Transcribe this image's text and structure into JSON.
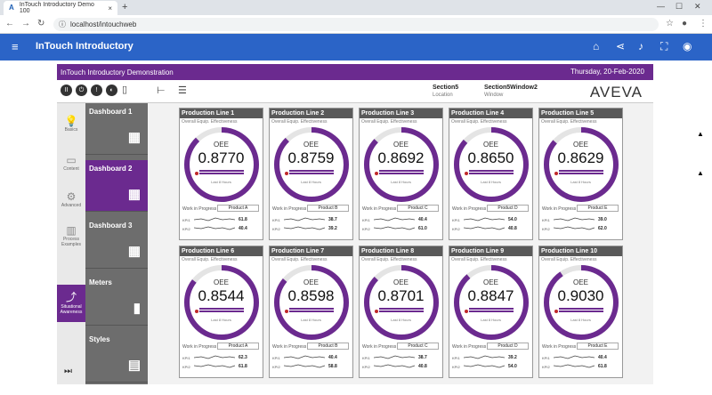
{
  "browser": {
    "tab_title": "InTouch Introductory Demo 100",
    "url": "localhost/intouchweb"
  },
  "app": {
    "title": "InTouch Introductory"
  },
  "banner": {
    "title": "InTouch Introductory Demonstration",
    "date": "Thursday, 20-Feb-2020"
  },
  "location": {
    "value": "Section5",
    "label": "Location"
  },
  "window": {
    "value": "Section5Window2",
    "label": "Window"
  },
  "logo": "AVEVA",
  "left_nav": [
    {
      "label": "Basics",
      "icon": "lightbulb-icon",
      "active": false
    },
    {
      "label": "Content",
      "icon": "car-icon",
      "active": false
    },
    {
      "label": "Advanced",
      "icon": "gears-icon",
      "active": false
    },
    {
      "label": "Process Examples",
      "icon": "factory-icon",
      "active": false
    },
    {
      "label": "Situational Awareness",
      "icon": "chart-icon",
      "active": true
    }
  ],
  "dash_nav": [
    {
      "label": "Dashboard 1",
      "active": false
    },
    {
      "label": "Dashboard 2",
      "active": true
    },
    {
      "label": "Dashboard 3",
      "active": false
    },
    {
      "label": "Meters",
      "active": false
    },
    {
      "label": "Styles",
      "active": false
    }
  ],
  "card_labels": {
    "subtitle": "Overall Equip. Effectiveness",
    "oee": "OEE",
    "last8": "Last 8 Hours",
    "wip": "Work in Progress",
    "kpi1": "KPI1",
    "kpi2": "KPI2"
  },
  "cards": [
    {
      "title": "Production Line 1",
      "value": "0.8770",
      "oee_fraction": 0.877,
      "product": "Product A",
      "kpi1": "61.8",
      "kpi2": "40.4"
    },
    {
      "title": "Production Line 2",
      "value": "0.8759",
      "oee_fraction": 0.8759,
      "product": "Product B",
      "kpi1": "38.7",
      "kpi2": "39.2"
    },
    {
      "title": "Production Line 3",
      "value": "0.8692",
      "oee_fraction": 0.8692,
      "product": "Product C",
      "kpi1": "40.4",
      "kpi2": "61.0"
    },
    {
      "title": "Production Line 4",
      "value": "0.8650",
      "oee_fraction": 0.865,
      "product": "Product D",
      "kpi1": "54.0",
      "kpi2": "40.8"
    },
    {
      "title": "Production Line 5",
      "value": "0.8629",
      "oee_fraction": 0.8629,
      "product": "Product E",
      "kpi1": "39.0",
      "kpi2": "62.0"
    },
    {
      "title": "Production Line 6",
      "value": "0.8544",
      "oee_fraction": 0.8544,
      "product": "Product A",
      "kpi1": "62.3",
      "kpi2": "61.8"
    },
    {
      "title": "Production Line 7",
      "value": "0.8598",
      "oee_fraction": 0.8598,
      "product": "Product B",
      "kpi1": "40.4",
      "kpi2": "58.8"
    },
    {
      "title": "Production Line 8",
      "value": "0.8701",
      "oee_fraction": 0.8701,
      "product": "Product C",
      "kpi1": "38.7",
      "kpi2": "40.8"
    },
    {
      "title": "Production Line 9",
      "value": "0.8847",
      "oee_fraction": 0.8847,
      "product": "Product D",
      "kpi1": "39.2",
      "kpi2": "54.0"
    },
    {
      "title": "Production Line 10",
      "value": "0.9030",
      "oee_fraction": 0.903,
      "product": "Product E",
      "kpi1": "40.4",
      "kpi2": "61.8"
    }
  ],
  "colors": {
    "purple": "#6b2a8f",
    "appbar": "#2b64c7",
    "header_gray": "#595959"
  }
}
